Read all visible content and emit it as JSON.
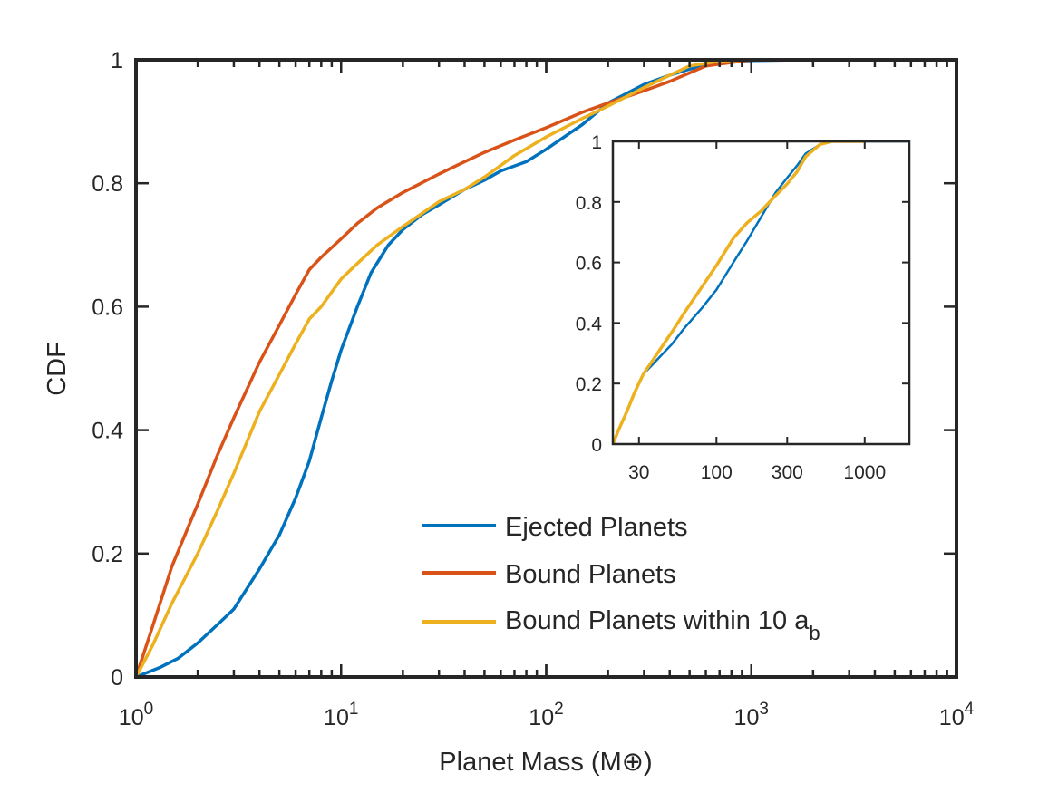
{
  "chart_data": [
    {
      "type": "line",
      "title": "",
      "xlabel": "Planet Mass (M⊕)",
      "ylabel": "CDF",
      "xscale": "log",
      "xlim": [
        1,
        10000
      ],
      "ylim": [
        0,
        1
      ],
      "x_tick_labels": [
        {
          "base": "10",
          "exp": "0"
        },
        {
          "base": "10",
          "exp": "1"
        },
        {
          "base": "10",
          "exp": "2"
        },
        {
          "base": "10",
          "exp": "3"
        },
        {
          "base": "10",
          "exp": "4"
        }
      ],
      "y_tick_labels": [
        "0",
        "0.2",
        "0.4",
        "0.6",
        "0.8",
        "1"
      ],
      "grid": false,
      "legend_position": "bottom-right",
      "series": [
        {
          "name": "Ejected Planets",
          "color": "#0072BD",
          "x": [
            1,
            1.3,
            1.6,
            2,
            2.5,
            3,
            3.5,
            4,
            5,
            6,
            7,
            8,
            9,
            10,
            12,
            14,
            17,
            20,
            25,
            30,
            40,
            50,
            60,
            80,
            100,
            150,
            200,
            300,
            400,
            500,
            700,
            1000,
            1800,
            2600
          ],
          "y": [
            0,
            0.015,
            0.03,
            0.055,
            0.085,
            0.11,
            0.145,
            0.175,
            0.23,
            0.29,
            0.35,
            0.42,
            0.48,
            0.53,
            0.6,
            0.655,
            0.7,
            0.725,
            0.75,
            0.765,
            0.79,
            0.805,
            0.82,
            0.835,
            0.855,
            0.895,
            0.93,
            0.96,
            0.975,
            0.985,
            0.996,
            0.999,
            1,
            1
          ]
        },
        {
          "name": "Bound Planets",
          "color": "#D95319",
          "x": [
            1,
            1.2,
            1.5,
            2,
            2.5,
            3,
            4,
            5,
            6,
            7,
            8,
            10,
            12,
            15,
            20,
            30,
            40,
            50,
            70,
            100,
            150,
            200,
            300,
            400,
            600,
            1000,
            1800
          ],
          "y": [
            0,
            0.08,
            0.18,
            0.28,
            0.36,
            0.42,
            0.51,
            0.57,
            0.62,
            0.66,
            0.68,
            0.71,
            0.735,
            0.76,
            0.785,
            0.815,
            0.835,
            0.85,
            0.87,
            0.89,
            0.915,
            0.93,
            0.95,
            0.965,
            0.99,
            1,
            1
          ]
        },
        {
          "name": "Bound Planets within 10 a",
          "name_subscript": "b",
          "color": "#EDB120",
          "x": [
            1,
            1.2,
            1.5,
            2,
            2.5,
            3,
            4,
            5,
            6,
            7,
            8,
            10,
            12,
            15,
            20,
            30,
            40,
            50,
            70,
            100,
            150,
            200,
            300,
            400,
            500,
            700,
            1000
          ],
          "y": [
            0,
            0.05,
            0.12,
            0.2,
            0.27,
            0.33,
            0.43,
            0.49,
            0.54,
            0.58,
            0.6,
            0.645,
            0.67,
            0.7,
            0.73,
            0.77,
            0.79,
            0.81,
            0.845,
            0.875,
            0.905,
            0.925,
            0.955,
            0.975,
            0.99,
            0.998,
            1
          ]
        }
      ]
    },
    {
      "type": "line",
      "title": "",
      "xlabel": "",
      "ylabel": "",
      "xscale": "log",
      "xlim": [
        20,
        2000
      ],
      "ylim": [
        0,
        1
      ],
      "x_tick_labels": [
        "30",
        "100",
        "300",
        "1000"
      ],
      "y_tick_labels": [
        "0",
        "0.2",
        "0.4",
        "0.6",
        "0.8",
        "1"
      ],
      "grid": false,
      "series": [
        {
          "color": "#0072BD",
          "x": [
            20,
            22,
            25,
            28,
            32,
            40,
            50,
            60,
            80,
            100,
            130,
            160,
            200,
            250,
            300,
            350,
            400,
            500,
            600,
            800,
            1000,
            2000
          ],
          "y": [
            0,
            0.05,
            0.11,
            0.17,
            0.23,
            0.28,
            0.33,
            0.38,
            0.45,
            0.51,
            0.6,
            0.67,
            0.75,
            0.83,
            0.88,
            0.92,
            0.96,
            0.99,
            1,
            1,
            1,
            1
          ]
        },
        {
          "color": "#EDB120",
          "x": [
            20,
            22,
            25,
            28,
            32,
            40,
            50,
            60,
            80,
            100,
            130,
            160,
            200,
            250,
            300,
            350,
            400,
            500,
            600,
            800,
            1000
          ],
          "y": [
            0,
            0.05,
            0.11,
            0.17,
            0.23,
            0.3,
            0.37,
            0.43,
            0.52,
            0.59,
            0.68,
            0.73,
            0.77,
            0.82,
            0.86,
            0.9,
            0.95,
            0.99,
            1,
            1,
            1
          ]
        }
      ]
    }
  ]
}
